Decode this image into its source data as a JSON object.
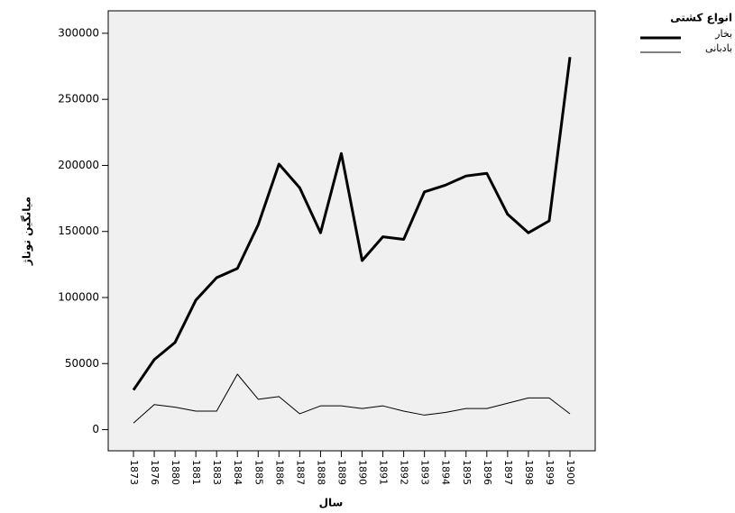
{
  "chart_data": {
    "type": "line",
    "x_label": "سال",
    "y_label": "میانگین توناژ",
    "legend_title": "انواع کشتی",
    "legend": "top-right",
    "categories": [
      "1873",
      "1876",
      "1880",
      "1881",
      "1883",
      "1884",
      "1885",
      "1886",
      "1887",
      "1888",
      "1889",
      "1890",
      "1891",
      "1892",
      "1893",
      "1894",
      "1895",
      "1896",
      "1897",
      "1898",
      "1899",
      "1900"
    ],
    "series": [
      {
        "name": "بخار",
        "color": "#000000",
        "line_width": 3,
        "values": [
          30000,
          53000,
          66000,
          98000,
          115000,
          122000,
          155000,
          201000,
          183000,
          149000,
          209000,
          128000,
          146000,
          144000,
          180000,
          185000,
          192000,
          194000,
          163000,
          149000,
          158000,
          282000
        ]
      },
      {
        "name": "بادبانی",
        "color": "#000000",
        "line_width": 1,
        "values": [
          5000,
          19000,
          17000,
          14000,
          14000,
          42000,
          23000,
          25000,
          12000,
          18000,
          18000,
          16000,
          18000,
          14000,
          11000,
          13000,
          16000,
          16000,
          20000,
          24000,
          24000,
          12000
        ]
      }
    ],
    "ylim": [
      -16000,
      317000
    ],
    "yticks": [
      0,
      50000,
      100000,
      150000,
      200000,
      250000,
      300000
    ],
    "plot_background": "#f0f0f0"
  }
}
